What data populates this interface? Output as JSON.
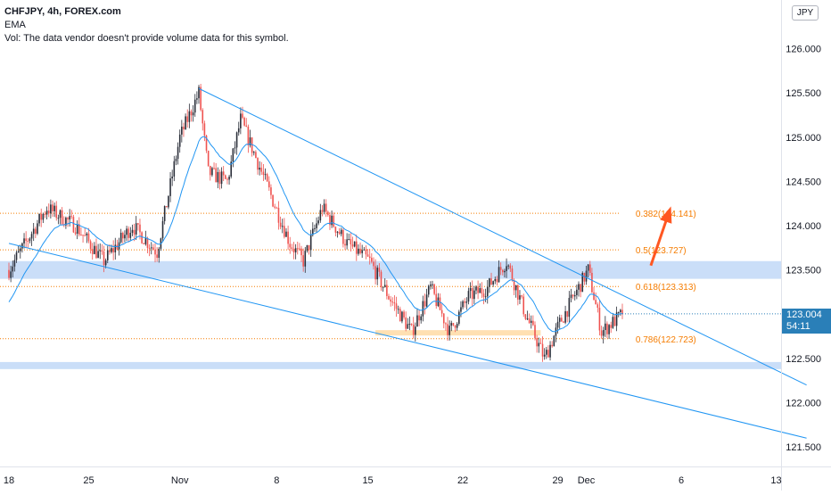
{
  "header": {
    "symbol_line": "CHFJPY, 4h, FOREX.com",
    "indicator_line": "EMA",
    "volume_line": "Vol: The data vendor doesn't provide volume data for this symbol."
  },
  "currency_badge": "JPY",
  "current_price": {
    "value": "123.004",
    "countdown": "54:11"
  },
  "chart_data": {
    "type": "candlestick",
    "title": "",
    "y_ticks": [
      "126.000",
      "125.500",
      "125.000",
      "124.500",
      "124.000",
      "123.500",
      "123.000",
      "122.500",
      "122.000",
      "121.500"
    ],
    "y_tick_values": [
      126.0,
      125.5,
      125.0,
      124.5,
      124.0,
      123.5,
      123.0,
      122.5,
      122.0,
      121.5
    ],
    "ylim": [
      121.28,
      126.55
    ],
    "x_ticks": [
      "18",
      "25",
      "Nov",
      "8",
      "15",
      "22",
      "29",
      "Dec",
      "6",
      "13"
    ],
    "x_tick_bar_index": [
      0,
      42,
      90,
      141,
      189,
      239,
      289,
      304,
      354,
      404
    ],
    "support_zones": [
      {
        "low": 123.4,
        "high": 123.6
      },
      {
        "low": 122.38,
        "high": 122.46
      }
    ],
    "orange_zone": {
      "low": 122.78,
      "high": 122.8
    },
    "fibonacci_levels": [
      {
        "label": "0.382(124.141)",
        "value": 124.141
      },
      {
        "label": "0.5(123.727)",
        "value": 123.727
      },
      {
        "label": "0.618(123.313)",
        "value": 123.313
      },
      {
        "label": "0.786(122.723)",
        "value": 122.723
      }
    ],
    "trend_lines": [
      {
        "from": {
          "bar": 100,
          "price": 125.55
        },
        "to": {
          "bar": 420,
          "price": 122.2
        }
      },
      {
        "from": {
          "bar": 0,
          "price": 123.8
        },
        "to": {
          "bar": 420,
          "price": 121.6
        }
      }
    ],
    "arrow": {
      "from": {
        "bar": 338,
        "price": 123.55
      },
      "to": {
        "bar": 348,
        "price": 124.18
      }
    },
    "series": [
      {
        "type": "ohlc",
        "start_bar": 0,
        "end_bar": 323,
        "close_end": 123.004,
        "anchors": [
          {
            "bar": 0,
            "price": 123.5
          },
          {
            "bar": 20,
            "price": 124.2
          },
          {
            "bar": 35,
            "price": 124.0
          },
          {
            "bar": 50,
            "price": 123.6
          },
          {
            "bar": 65,
            "price": 124.0
          },
          {
            "bar": 78,
            "price": 123.7
          },
          {
            "bar": 90,
            "price": 125.0
          },
          {
            "bar": 100,
            "price": 125.5
          },
          {
            "bar": 105,
            "price": 124.6
          },
          {
            "bar": 115,
            "price": 124.5
          },
          {
            "bar": 122,
            "price": 125.2
          },
          {
            "bar": 135,
            "price": 124.5
          },
          {
            "bar": 148,
            "price": 123.8
          },
          {
            "bar": 155,
            "price": 123.6
          },
          {
            "bar": 165,
            "price": 124.2
          },
          {
            "bar": 178,
            "price": 123.8
          },
          {
            "bar": 190,
            "price": 123.6
          },
          {
            "bar": 200,
            "price": 123.2
          },
          {
            "bar": 212,
            "price": 122.8
          },
          {
            "bar": 222,
            "price": 123.3
          },
          {
            "bar": 232,
            "price": 122.8
          },
          {
            "bar": 242,
            "price": 123.2
          },
          {
            "bar": 252,
            "price": 123.3
          },
          {
            "bar": 262,
            "price": 123.6
          },
          {
            "bar": 272,
            "price": 123.0
          },
          {
            "bar": 282,
            "price": 122.5
          },
          {
            "bar": 290,
            "price": 122.9
          },
          {
            "bar": 300,
            "price": 123.3
          },
          {
            "bar": 305,
            "price": 123.5
          },
          {
            "bar": 312,
            "price": 122.8
          },
          {
            "bar": 323,
            "price": 123.0
          }
        ]
      }
    ]
  },
  "colors": {
    "candle_up": "#2a2e39",
    "candle_down": "#ef5350",
    "ema": "#2196f3",
    "zone": "#b8d3f5",
    "fib": "#f57c00",
    "trendline": "#2196f3"
  }
}
